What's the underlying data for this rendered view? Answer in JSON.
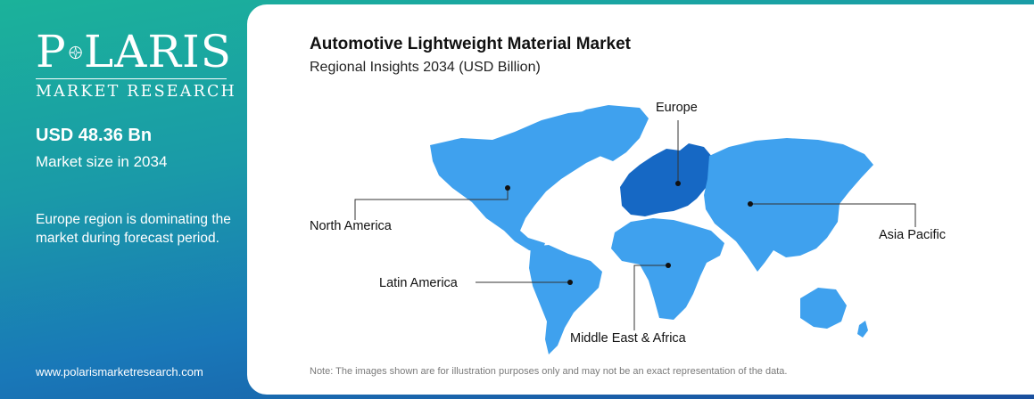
{
  "brand": {
    "name_before": "P",
    "name_after": "LARIS",
    "tagline": "MARKET RESEARCH",
    "website": "www.polarismarketresearch.com"
  },
  "stats": {
    "value": "USD 48.36 Bn",
    "caption": "Market size in 2034",
    "insight": "Europe region is dominating the market during forecast period."
  },
  "card": {
    "title": "Automotive Lightweight Material Market",
    "subtitle": "Regional Insights 2034 (USD Billion)",
    "note": "Note: The images shown are for illustration purposes only and may not be an exact representation of the data."
  },
  "regions": [
    {
      "label": "North America",
      "highlighted": false
    },
    {
      "label": "Europe",
      "highlighted": true
    },
    {
      "label": "Asia Pacific",
      "highlighted": false
    },
    {
      "label": "Latin America",
      "highlighted": false
    },
    {
      "label": "Middle East & Africa",
      "highlighted": false
    }
  ],
  "colors": {
    "map_base": "#3fa1ee",
    "map_highlight": "#1668c4",
    "leader_line": "#333333"
  }
}
